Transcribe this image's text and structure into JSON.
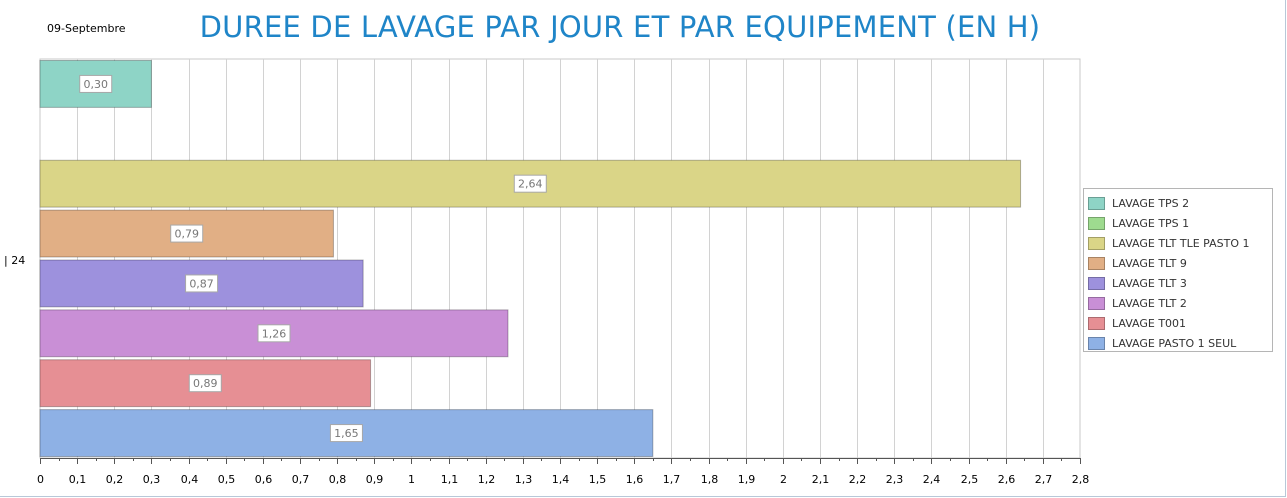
{
  "header": {
    "date": "09-Septembre",
    "title": "DUREE DE LAVAGE PAR JOUR ET PAR EQUIPEMENT (EN H)"
  },
  "chart_data": {
    "type": "bar",
    "orientation": "horizontal",
    "title": "DUREE DE LAVAGE PAR JOUR ET PAR EQUIPEMENT (EN H)",
    "categories": [
      "24"
    ],
    "category_label_prefix": "| ",
    "xlim": [
      0,
      2.8
    ],
    "x_ticks": [
      "0",
      "0,1",
      "0,2",
      "0,3",
      "0,4",
      "0,5",
      "0,6",
      "0,7",
      "0,8",
      "0,9",
      "1",
      "1,1",
      "1,2",
      "1,3",
      "1,4",
      "1,5",
      "1,6",
      "1,7",
      "1,8",
      "1,9",
      "2",
      "2,1",
      "2,2",
      "2,3",
      "2,4",
      "2,5",
      "2,6",
      "2,7",
      "2,8"
    ],
    "grid": true,
    "legend_position": "right",
    "series": [
      {
        "name": "LAVAGE TPS 2",
        "value": 0.3,
        "label": "0,30",
        "color": "#8ed4c6"
      },
      {
        "name": "LAVAGE TPS 1",
        "value": null,
        "label": "",
        "color": "#9edb8f"
      },
      {
        "name": "LAVAGE TLT TLE PASTO 1",
        "value": 2.64,
        "label": "2,64",
        "color": "#dad587"
      },
      {
        "name": "LAVAGE TLT 9",
        "value": 0.79,
        "label": "0,79",
        "color": "#e1af85"
      },
      {
        "name": "LAVAGE TLT 3",
        "value": 0.87,
        "label": "0,87",
        "color": "#9d91dd"
      },
      {
        "name": "LAVAGE TLT 2",
        "value": 1.26,
        "label": "1,26",
        "color": "#c98fd6"
      },
      {
        "name": "LAVAGE T001",
        "value": 0.89,
        "label": "0,89",
        "color": "#e68f94"
      },
      {
        "name": "LAVAGE PASTO 1 SEUL",
        "value": 1.65,
        "label": "1,65",
        "color": "#8eb1e5"
      }
    ]
  }
}
